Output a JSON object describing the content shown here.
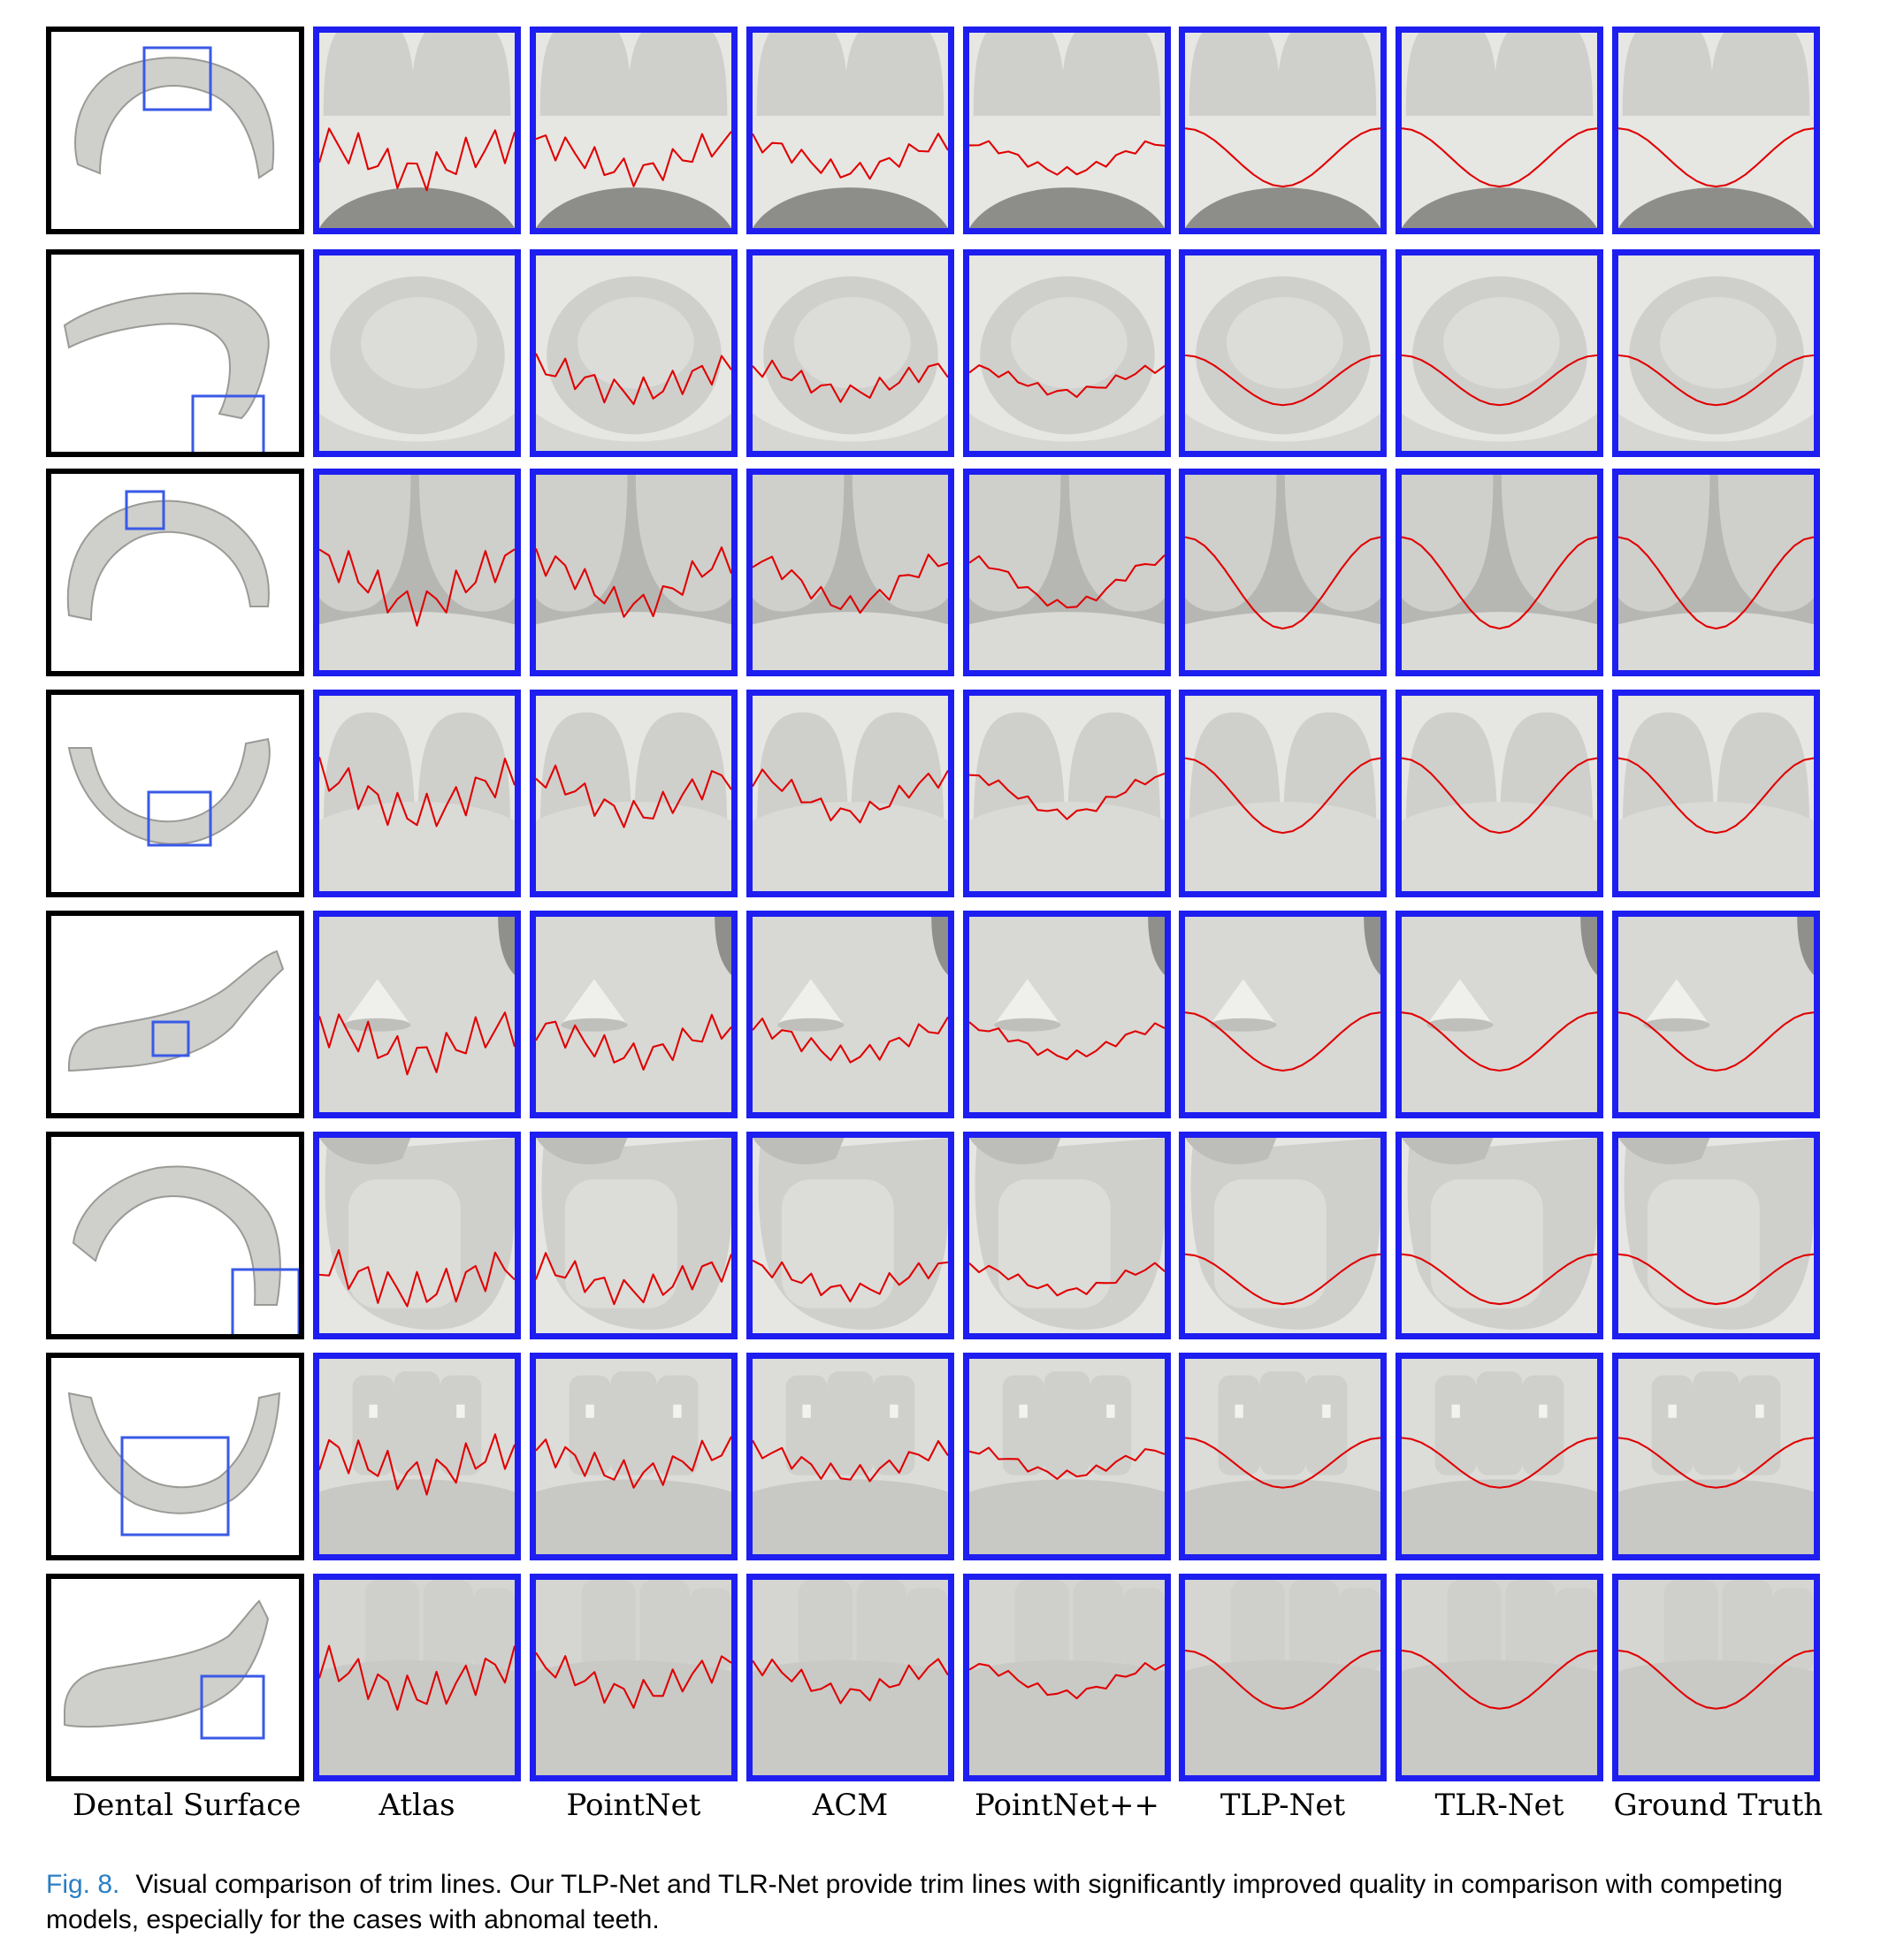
{
  "figure": {
    "columns": [
      "Dental Surface",
      "Atlas",
      "PointNet",
      "ACM",
      "PointNet++",
      "TLP-Net",
      "TLR-Net",
      "Ground Truth"
    ],
    "rows": 8,
    "colors": {
      "surface_border": "#000000",
      "method_border": "#1e1ef0",
      "roi_box": "#3a5ae6",
      "trim_line": "#e00000",
      "tooth_fill": "#cfcfcc"
    },
    "views": [
      "incisors-top",
      "molar-crown",
      "incisor-gap",
      "front-teeth",
      "attachment-cone",
      "molar-top",
      "front-attachments",
      "lower-incisors"
    ],
    "caption": {
      "label": "Fig. 8.",
      "text": "Visual comparison of trim lines. Our TLP-Net and TLR-Net provide trim lines with significantly improved quality in comparison with competing models, especially for the cases with abnomal teeth."
    }
  }
}
